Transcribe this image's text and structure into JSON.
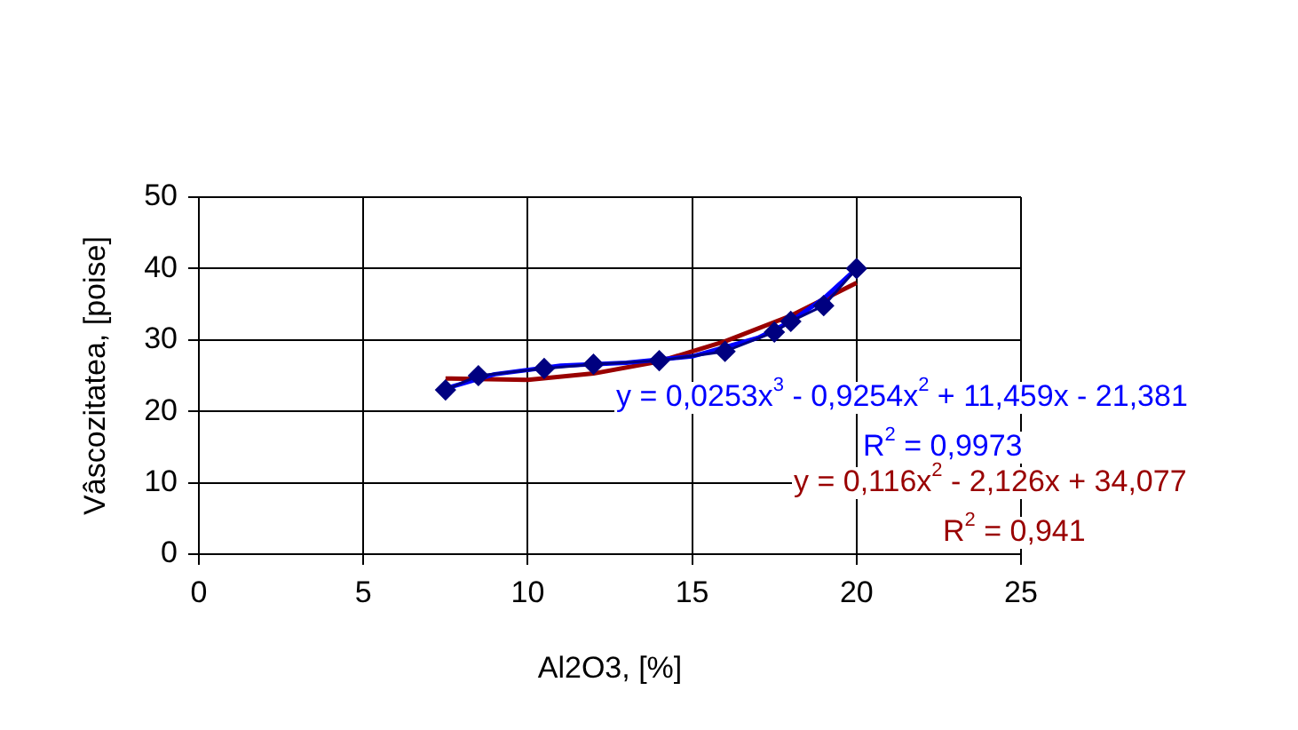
{
  "chart_data": {
    "type": "line",
    "xlabel": "Al2O3, [%]",
    "ylabel": "Vâscozitatea, [poise]",
    "x": [
      7.5,
      8.5,
      10.5,
      12,
      14,
      16,
      17.5,
      18,
      19,
      20
    ],
    "series": [
      {
        "type": "line",
        "color": "#000080",
        "marker": "diamond",
        "values": [
          23,
          25,
          26,
          26.6,
          27.1,
          28.4,
          31.1,
          32.6,
          34.8,
          40
        ]
      },
      {
        "type": "line",
        "color": "#0000ff",
        "marker": "none",
        "x": [
          7.5,
          9,
          11,
          13,
          15,
          17,
          18,
          19,
          20
        ],
        "values": [
          23.2,
          25.2,
          26.4,
          26.8,
          27.7,
          30.3,
          32.6,
          35.8,
          40
        ]
      },
      {
        "type": "line",
        "color": "#990000",
        "marker": "none",
        "x": [
          7.5,
          10,
          12,
          14,
          16,
          18,
          20
        ],
        "values": [
          24.6,
          24.4,
          25.3,
          27,
          29.8,
          33.4,
          38
        ]
      }
    ],
    "xlim": [
      0,
      25
    ],
    "xticks": [
      0,
      5,
      10,
      15,
      20,
      25
    ],
    "ylim": [
      0,
      50
    ],
    "yticks": [
      0,
      10,
      20,
      30,
      40,
      50
    ],
    "grid": true,
    "legend": false,
    "annotations": [
      "y = 0,0253x$^{3}$ - 0,9254x$^{2}$ + 11,459x - 21,381",
      "R$^{2}$ = 0,9973",
      "y = 0,116x$^{2}$ - 2,126x + 34,077",
      "R$^{2}$ = 0,941"
    ]
  }
}
